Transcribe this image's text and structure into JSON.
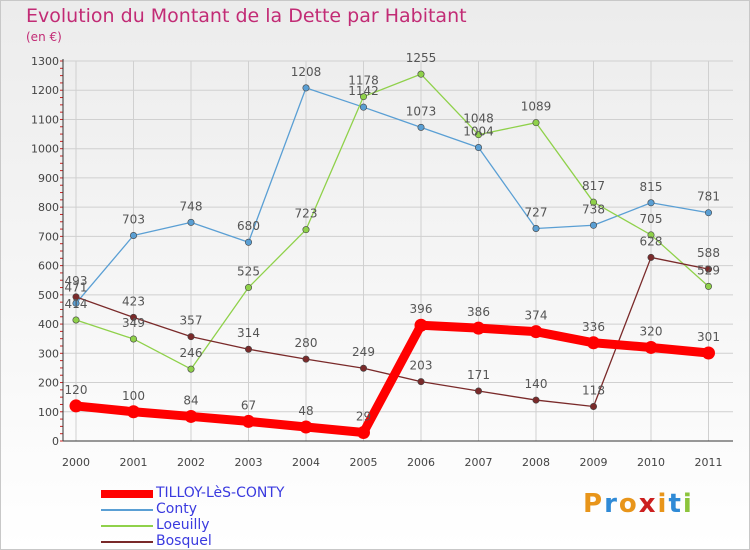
{
  "title": "Evolution du Montant de la Dette par Habitant",
  "subtitle": "(en €)",
  "chart_data": {
    "type": "line",
    "title": "Evolution du Montant de la Dette par Habitant",
    "subtitle": "(en €)",
    "x": [
      "2000",
      "2001",
      "2002",
      "2003",
      "2004",
      "2005",
      "2006",
      "2007",
      "2008",
      "2009",
      "2010",
      "2011"
    ],
    "ylim": [
      0,
      1300
    ],
    "yticks": [
      0,
      100,
      200,
      300,
      400,
      500,
      600,
      700,
      800,
      900,
      1000,
      1100,
      1200,
      1300
    ],
    "grid": true,
    "legend_position": "bottom-left",
    "series": [
      {
        "name": "TILLOY-LèS-CONTY",
        "color": "#ff0000",
        "values": [
          120,
          100,
          84,
          67,
          48,
          29,
          396,
          386,
          374,
          336,
          320,
          301
        ]
      },
      {
        "name": "Conty",
        "color": "#5a9fd4",
        "values": [
          471,
          703,
          748,
          680,
          1208,
          1142,
          1073,
          1004,
          727,
          738,
          815,
          781
        ]
      },
      {
        "name": "Loeuilly",
        "color": "#8fd14a",
        "values": [
          414,
          349,
          246,
          525,
          723,
          1178,
          1255,
          1048,
          1089,
          817,
          705,
          529
        ]
      },
      {
        "name": "Bosquel",
        "color": "#7a2a2a",
        "values": [
          493,
          423,
          357,
          314,
          280,
          249,
          203,
          171,
          140,
          118,
          628,
          588
        ]
      }
    ]
  },
  "logo": {
    "text": "Proxiti",
    "colors": [
      "#e8951a",
      "#2f8ad6",
      "#e8951a",
      "#cc1f1f",
      "#e8951a",
      "#2f8ad6",
      "#8cc43c"
    ]
  }
}
